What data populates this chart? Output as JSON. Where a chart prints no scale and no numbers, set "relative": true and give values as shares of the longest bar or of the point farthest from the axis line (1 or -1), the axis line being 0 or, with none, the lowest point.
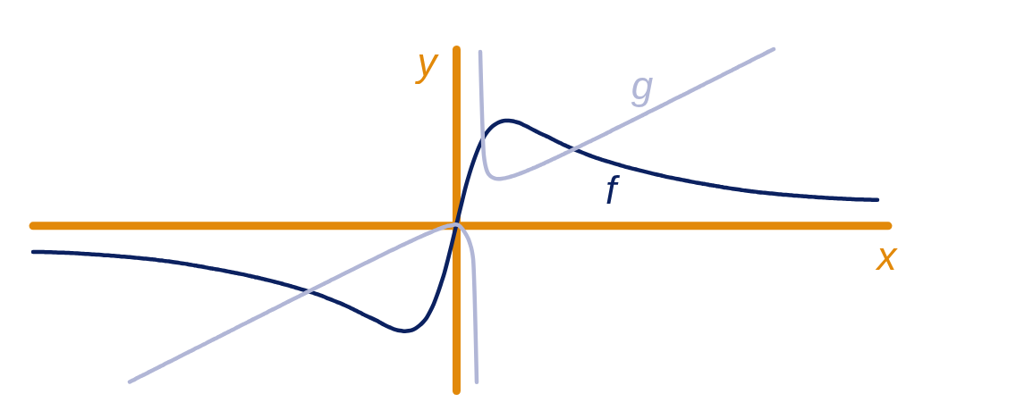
{
  "chart_data": {
    "type": "line",
    "relative": true,
    "xlabel": "x",
    "ylabel": "y",
    "ref_lines": [
      {
        "axis": "y",
        "value": 0,
        "color": "#e2890a"
      }
    ],
    "categories": [
      null,
      null,
      null,
      null,
      null,
      null,
      null,
      null,
      null,
      null,
      null,
      null,
      null,
      null,
      null,
      null,
      null,
      null,
      null,
      null,
      null,
      null,
      null,
      null,
      null,
      null,
      null,
      null,
      null,
      null,
      null,
      null,
      null,
      null,
      null,
      null,
      null,
      null,
      null,
      null,
      null,
      null,
      null,
      null,
      null,
      null,
      null,
      null,
      null,
      null,
      null,
      null,
      null,
      null,
      null,
      null,
      null,
      null,
      null,
      null,
      null,
      null,
      null,
      null,
      null,
      null,
      null,
      null,
      null,
      null,
      null,
      null,
      null,
      null,
      null,
      null,
      null,
      null,
      null,
      null,
      null,
      null,
      null,
      null,
      null,
      null,
      null,
      null,
      null,
      null,
      null,
      null,
      null,
      null,
      null,
      null,
      null,
      null,
      null,
      null,
      null,
      null,
      null,
      null,
      null,
      null,
      null,
      null,
      null,
      null,
      null,
      null,
      null,
      null,
      null,
      null,
      null,
      null,
      null,
      null,
      null,
      null,
      null,
      null,
      null,
      null,
      null,
      null,
      null,
      null,
      null,
      null,
      null,
      null,
      null,
      null,
      null,
      null,
      null,
      null,
      null,
      null,
      null,
      null,
      null,
      null,
      null,
      null,
      null,
      null,
      null,
      null,
      null,
      null,
      null,
      null,
      null,
      null,
      null,
      null,
      null,
      null,
      null,
      null,
      null,
      null,
      null,
      null,
      null,
      null,
      null,
      null,
      null,
      null,
      null,
      null,
      null,
      null,
      null,
      null,
      null,
      null,
      null,
      null,
      null,
      null,
      null,
      null,
      null,
      null,
      null,
      null,
      null,
      null,
      null,
      null,
      null,
      null,
      null,
      null,
      null,
      null,
      null,
      null,
      null,
      null,
      null,
      null,
      null,
      null,
      null,
      null,
      null,
      null,
      null,
      null,
      null,
      null,
      null,
      null,
      null,
      null,
      null,
      null,
      null,
      null,
      null,
      null,
      null,
      null,
      null,
      null,
      null,
      null,
      null,
      null,
      null,
      null,
      null,
      null
    ],
    "series": [
      {
        "name": "f",
        "color": "#0b2160",
        "values": [
          -0.147,
          -0.147,
          -0.147,
          -0.148,
          -0.149,
          -0.149,
          -0.15,
          -0.151,
          -0.151,
          -0.152,
          -0.153,
          -0.154,
          -0.155,
          -0.156,
          -0.158,
          -0.159,
          -0.16,
          -0.162,
          -0.163,
          -0.164,
          -0.166,
          -0.167,
          -0.169,
          -0.17,
          -0.172,
          -0.174,
          -0.175,
          -0.177,
          -0.179,
          -0.181,
          -0.183,
          -0.185,
          -0.187,
          -0.189,
          -0.191,
          -0.194,
          -0.196,
          -0.199,
          -0.201,
          -0.204,
          -0.207,
          -0.21,
          -0.213,
          -0.216,
          -0.22,
          -0.223,
          -0.227,
          -0.23,
          -0.234,
          -0.238,
          -0.241,
          -0.245,
          -0.248,
          -0.252,
          -0.256,
          -0.26,
          -0.264,
          -0.268,
          -0.272,
          -0.276,
          -0.281,
          -0.285,
          -0.29,
          -0.294,
          -0.299,
          -0.304,
          -0.309,
          -0.314,
          -0.319,
          -0.324,
          -0.33,
          -0.335,
          -0.341,
          -0.347,
          -0.353,
          -0.359,
          -0.365,
          -0.371,
          -0.377,
          -0.384,
          -0.391,
          -0.398,
          -0.407,
          -0.415,
          -0.423,
          -0.431,
          -0.439,
          -0.448,
          -0.457,
          -0.467,
          -0.477,
          -0.487,
          -0.497,
          -0.508,
          -0.517,
          -0.526,
          -0.536,
          -0.547,
          -0.558,
          -0.568,
          -0.577,
          -0.586,
          -0.591,
          -0.594,
          -0.596,
          -0.594,
          -0.589,
          -0.579,
          -0.564,
          -0.545,
          -0.52,
          -0.484,
          -0.441,
          -0.388,
          -0.328,
          -0.264,
          -0.187,
          -0.106,
          -0.021,
          0.064,
          0.146,
          0.227,
          0.297,
          0.359,
          0.415,
          0.463,
          0.503,
          0.533,
          0.556,
          0.572,
          0.584,
          0.592,
          0.595,
          0.595,
          0.593,
          0.588,
          0.582,
          0.572,
          0.563,
          0.552,
          0.541,
          0.531,
          0.521,
          0.512,
          0.503,
          0.492,
          0.482,
          0.472,
          0.462,
          0.453,
          0.444,
          0.435,
          0.427,
          0.419,
          0.411,
          0.403,
          0.395,
          0.388,
          0.381,
          0.374,
          0.368,
          0.362,
          0.356,
          0.35,
          0.344,
          0.338,
          0.332,
          0.327,
          0.322,
          0.317,
          0.312,
          0.307,
          0.302,
          0.297,
          0.292,
          0.288,
          0.283,
          0.278,
          0.274,
          0.27,
          0.266,
          0.262,
          0.258,
          0.254,
          0.25,
          0.246,
          0.243,
          0.239,
          0.236,
          0.232,
          0.229,
          0.225,
          0.222,
          0.218,
          0.215,
          0.212,
          0.209,
          0.206,
          0.203,
          0.2,
          0.198,
          0.195,
          0.193,
          0.19,
          0.188,
          0.186,
          0.184,
          0.182,
          0.18,
          0.178,
          0.176,
          0.175,
          0.173,
          0.171,
          0.17,
          0.168,
          0.167,
          0.165,
          0.164,
          0.162,
          0.161,
          0.16,
          0.158,
          0.157,
          0.156,
          0.155,
          0.154,
          0.153,
          0.152,
          0.151,
          0.15,
          0.15,
          0.149,
          0.148,
          0.148,
          0.147,
          0.147,
          null,
          null,
          null
        ]
      },
      {
        "name": "g",
        "color": "#b1b6d6",
        "values": [
          null,
          null,
          null,
          null,
          null,
          null,
          null,
          null,
          null,
          null,
          null,
          null,
          null,
          null,
          null,
          null,
          null,
          null,
          null,
          null,
          null,
          null,
          null,
          null,
          null,
          null,
          null,
          null,
          null,
          null,
          null,
          null,
          null,
          null,
          null,
          null,
          null,
          null,
          null,
          null,
          null,
          null,
          null,
          null,
          null,
          null,
          null,
          null,
          null,
          null,
          null,
          null,
          null,
          null,
          null,
          null,
          null,
          null,
          null,
          null,
          null,
          null,
          null,
          null,
          null,
          null,
          null,
          null,
          null,
          null,
          null,
          null,
          null,
          null,
          null,
          null,
          null,
          null,
          null,
          null,
          null,
          null,
          null,
          null,
          null,
          null,
          null,
          null,
          null,
          null,
          null,
          null,
          null,
          null,
          null,
          null,
          null,
          null,
          null,
          null,
          null,
          null,
          null,
          null,
          null,
          null,
          null,
          null,
          null,
          null,
          null,
          null,
          null,
          null,
          null,
          null,
          null,
          null,
          null,
          null,
          null,
          null,
          null,
          null,
          null,
          0.985,
          0.399,
          0.304,
          0.279,
          0.269,
          0.266,
          0.267,
          0.27,
          0.275,
          0.281,
          0.288,
          0.295,
          0.303,
          0.311,
          0.32,
          0.328,
          0.337,
          0.346,
          0.355,
          0.365,
          0.374,
          0.384,
          0.393,
          0.403,
          0.413,
          0.422,
          0.432,
          0.442,
          0.452,
          0.462,
          0.472,
          0.481,
          0.491,
          0.501,
          0.511,
          0.521,
          0.531,
          0.542,
          0.552,
          0.562,
          0.572,
          0.582,
          0.592,
          0.602,
          0.612,
          0.622,
          0.632,
          0.643,
          0.653,
          0.663,
          0.673,
          0.683,
          0.693,
          0.704,
          0.714,
          0.724,
          0.734,
          0.744,
          0.754,
          0.765,
          0.775,
          0.785,
          0.795,
          0.806,
          0.816,
          0.826,
          0.836,
          0.846,
          0.857,
          0.867,
          0.877,
          0.887,
          0.898,
          0.908,
          0.918,
          0.928,
          0.939,
          0.949,
          0.959,
          0.969,
          0.98,
          0.99,
          1.0,
          null,
          null,
          null,
          null,
          null,
          null,
          null,
          null,
          null,
          null,
          null,
          null,
          null,
          null,
          null,
          null,
          null,
          null,
          null,
          null,
          null,
          null,
          null,
          null,
          null,
          null,
          null,
          null,
          null,
          null,
          null,
          null
        ]
      },
      {
        "color": "#b1b6d6",
        "values": [
          null,
          null,
          null,
          null,
          null,
          null,
          null,
          null,
          null,
          null,
          null,
          null,
          null,
          null,
          null,
          null,
          null,
          null,
          null,
          null,
          null,
          null,
          null,
          null,
          null,
          null,
          null,
          -0.883,
          -0.873,
          -0.862,
          -0.852,
          -0.842,
          -0.832,
          -0.821,
          -0.811,
          -0.801,
          -0.791,
          -0.78,
          -0.77,
          -0.76,
          -0.75,
          -0.739,
          -0.729,
          -0.719,
          -0.709,
          -0.698,
          -0.688,
          -0.678,
          -0.668,
          -0.657,
          -0.647,
          -0.637,
          -0.627,
          -0.616,
          -0.606,
          -0.596,
          -0.586,
          -0.575,
          -0.565,
          -0.555,
          -0.545,
          -0.534,
          -0.524,
          -0.514,
          -0.504,
          -0.494,
          -0.483,
          -0.473,
          -0.463,
          -0.453,
          -0.442,
          -0.432,
          -0.422,
          -0.412,
          -0.402,
          -0.392,
          -0.381,
          -0.371,
          -0.361,
          -0.351,
          -0.341,
          -0.331,
          -0.321,
          -0.31,
          -0.3,
          -0.29,
          -0.28,
          -0.27,
          -0.26,
          -0.25,
          -0.24,
          -0.23,
          -0.22,
          -0.21,
          -0.2,
          -0.19,
          -0.18,
          -0.17,
          -0.16,
          -0.15,
          -0.14,
          -0.131,
          -0.121,
          -0.111,
          -0.102,
          -0.092,
          -0.083,
          -0.073,
          -0.064,
          -0.055,
          -0.046,
          -0.038,
          -0.029,
          -0.021,
          -0.013,
          -0.006,
          0.0,
          0.003,
          0.008,
          0.003,
          -0.018,
          -0.048,
          -0.093,
          -0.187,
          -0.884,
          null,
          null,
          null,
          null,
          null,
          null,
          null,
          null,
          null,
          null,
          null,
          null,
          null,
          null,
          null,
          null,
          null,
          null,
          null,
          null,
          null,
          null,
          null,
          null,
          null,
          null,
          null,
          null,
          null,
          null,
          null,
          null,
          null,
          null,
          null,
          null,
          null,
          null,
          null,
          null,
          null,
          null,
          null,
          null,
          null,
          null,
          null,
          null,
          null,
          null,
          null,
          null,
          null,
          null,
          null,
          null,
          null,
          null,
          null,
          null,
          null,
          null,
          null,
          null,
          null,
          null,
          null,
          null,
          null,
          null,
          null,
          null,
          null,
          null,
          null,
          null,
          null,
          null,
          null,
          null,
          null,
          null,
          null,
          null,
          null,
          null,
          null,
          null,
          null,
          null,
          null,
          null,
          null,
          null,
          null,
          null,
          null,
          null,
          null,
          null,
          null,
          null,
          null,
          null,
          null,
          null,
          null,
          null,
          null,
          null,
          null,
          null,
          null,
          null,
          null
        ]
      }
    ]
  }
}
